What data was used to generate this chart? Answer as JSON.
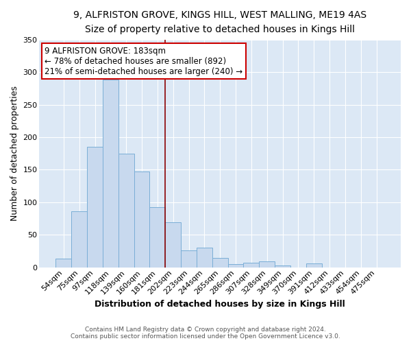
{
  "title": "9, ALFRISTON GROVE, KINGS HILL, WEST MALLING, ME19 4AS",
  "subtitle": "Size of property relative to detached houses in Kings Hill",
  "xlabel": "Distribution of detached houses by size in Kings Hill",
  "ylabel": "Number of detached properties",
  "bar_color": "#c8d9ee",
  "bar_edge_color": "#7aaed6",
  "bg_color": "#dce8f5",
  "plot_bg_color": "#dce8f5",
  "fig_bg_color": "#ffffff",
  "grid_color": "#ffffff",
  "categories": [
    "54sqm",
    "75sqm",
    "97sqm",
    "118sqm",
    "139sqm",
    "160sqm",
    "181sqm",
    "202sqm",
    "223sqm",
    "244sqm",
    "265sqm",
    "286sqm",
    "307sqm",
    "328sqm",
    "349sqm",
    "370sqm",
    "391sqm",
    "412sqm",
    "433sqm",
    "454sqm",
    "475sqm"
  ],
  "values": [
    13,
    86,
    185,
    289,
    175,
    147,
    92,
    69,
    26,
    30,
    14,
    5,
    7,
    9,
    3,
    0,
    6,
    0,
    0,
    0,
    0
  ],
  "vline_color": "#8b0000",
  "annotation_title": "9 ALFRISTON GROVE: 183sqm",
  "annotation_line1": "← 78% of detached houses are smaller (892)",
  "annotation_line2": "21% of semi-detached houses are larger (240) →",
  "annotation_box_color": "#ffffff",
  "annotation_border_color": "#cc0000",
  "ylim": [
    0,
    350
  ],
  "yticks": [
    0,
    50,
    100,
    150,
    200,
    250,
    300,
    350
  ],
  "footer1": "Contains HM Land Registry data © Crown copyright and database right 2024.",
  "footer2": "Contains public sector information licensed under the Open Government Licence v3.0."
}
